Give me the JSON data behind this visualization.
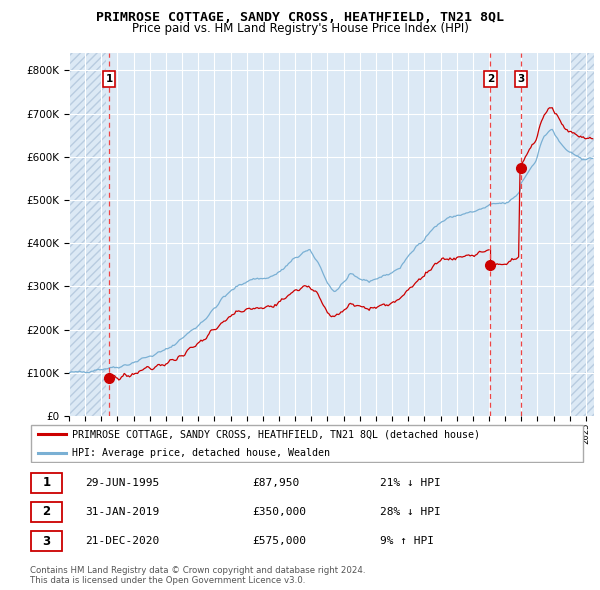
{
  "title": "PRIMROSE COTTAGE, SANDY CROSS, HEATHFIELD, TN21 8QL",
  "subtitle": "Price paid vs. HM Land Registry's House Price Index (HPI)",
  "legend_line1": "PRIMROSE COTTAGE, SANDY CROSS, HEATHFIELD, TN21 8QL (detached house)",
  "legend_line2": "HPI: Average price, detached house, Wealden",
  "transactions": [
    {
      "num": 1,
      "date": "29-JUN-1995",
      "price": 87950,
      "pct": "21%",
      "dir": "↓",
      "x_year": 1995.49
    },
    {
      "num": 2,
      "date": "31-JAN-2019",
      "price": 350000,
      "pct": "28%",
      "dir": "↓",
      "x_year": 2019.08
    },
    {
      "num": 3,
      "date": "21-DEC-2020",
      "price": 575000,
      "pct": "9%",
      "dir": "↑",
      "x_year": 2020.97
    }
  ],
  "footnote1": "Contains HM Land Registry data © Crown copyright and database right 2024.",
  "footnote2": "This data is licensed under the Open Government Licence v3.0.",
  "xlim": [
    1993.0,
    2025.5
  ],
  "ylim": [
    0,
    840000
  ],
  "yticks": [
    0,
    100000,
    200000,
    300000,
    400000,
    500000,
    600000,
    700000,
    800000
  ],
  "background_color": "#dce9f5",
  "hatch_left_end": 1993.0,
  "hatch_right_start": 2024.0,
  "grid_color": "#ffffff",
  "red_line_color": "#cc0000",
  "blue_line_color": "#7ab0d4",
  "dot_color": "#cc0000",
  "dashed_color": "#ee4444"
}
